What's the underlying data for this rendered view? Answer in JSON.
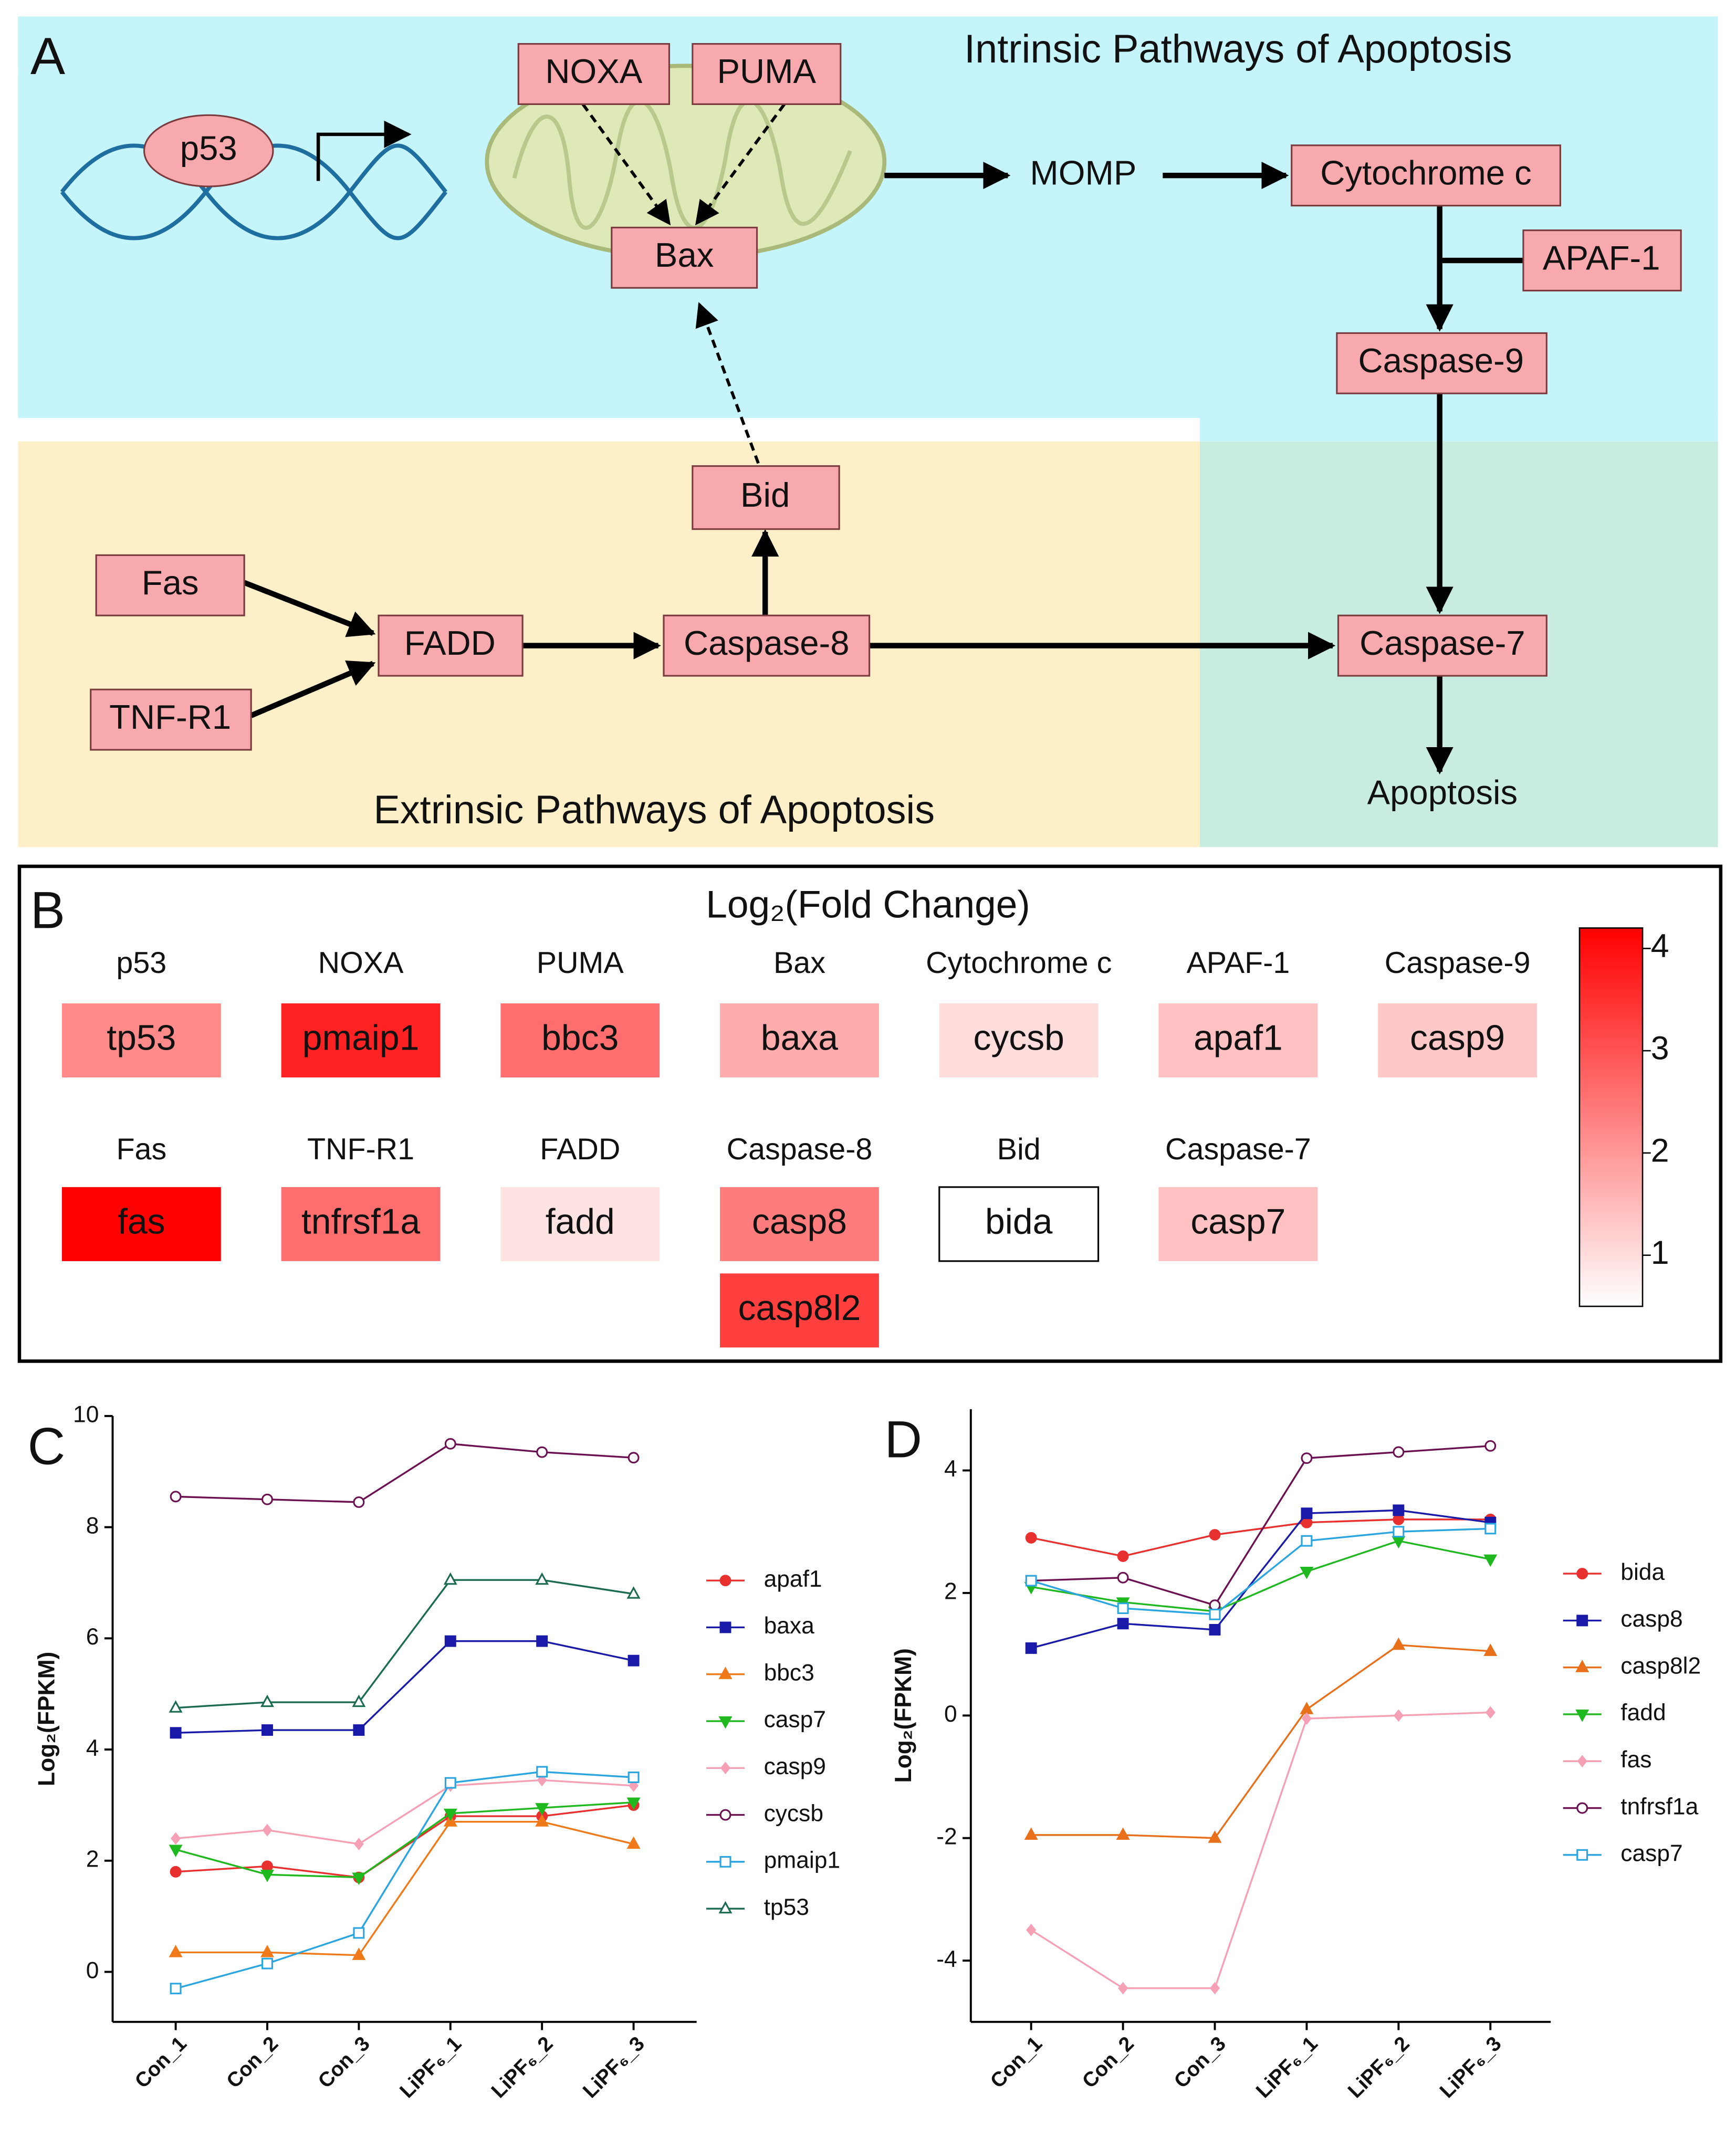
{
  "panel_a": {
    "label": "A",
    "intrinsic_title": "Intrinsic Pathways of Apoptosis",
    "extrinsic_title": "Extrinsic Pathways of Apoptosis",
    "p53": "p53",
    "nodes": {
      "noxa": "NOXA",
      "puma": "PUMA",
      "bax": "Bax",
      "cytc": "Cytochrome c",
      "apaf1": "APAF-1",
      "casp9": "Caspase-9",
      "bid": "Bid",
      "fas": "Fas",
      "fadd": "FADD",
      "casp8": "Caspase-8",
      "casp7": "Caspase-7",
      "tnfr1": "TNF-R1"
    },
    "momp": "MOMP",
    "apoptosis": "Apoptosis"
  },
  "panel_b": {
    "label": "B",
    "title": "Log₂(Fold Change)",
    "colorbar": {
      "lim": [
        0.5,
        4.2
      ],
      "ticks": [
        1,
        2,
        3,
        4
      ],
      "low_color": "#ffffff",
      "high_color": "#ff0000"
    },
    "rows": [
      [
        {
          "protein": "p53",
          "genes": [
            {
              "name": "tp53",
              "value": 2.2
            }
          ]
        },
        {
          "protein": "NOXA",
          "genes": [
            {
              "name": "pmaip1",
              "value": 3.7
            }
          ]
        },
        {
          "protein": "PUMA",
          "genes": [
            {
              "name": "bbc3",
              "value": 2.6
            }
          ]
        },
        {
          "protein": "Bax",
          "genes": [
            {
              "name": "baxa",
              "value": 1.7
            }
          ]
        },
        {
          "protein": "Cytochrome c",
          "genes": [
            {
              "name": "cycsb",
              "value": 1.0
            }
          ]
        },
        {
          "protein": "APAF-1",
          "genes": [
            {
              "name": "apaf1",
              "value": 1.4
            }
          ]
        },
        {
          "protein": "Caspase-9",
          "genes": [
            {
              "name": "casp9",
              "value": 1.3
            }
          ]
        }
      ],
      [
        {
          "protein": "Fas",
          "genes": [
            {
              "name": "fas",
              "value": 4.2
            }
          ]
        },
        {
          "protein": "TNF-R1",
          "genes": [
            {
              "name": "tnfrsf1a",
              "value": 2.6
            }
          ]
        },
        {
          "protein": "FADD",
          "genes": [
            {
              "name": "fadd",
              "value": 0.9
            }
          ]
        },
        {
          "protein": "Caspase-8",
          "genes": [
            {
              "name": "casp8",
              "value": 2.4
            },
            {
              "name": "casp8l2",
              "value": 3.3
            }
          ]
        },
        {
          "protein": "Bid",
          "genes": [
            {
              "name": "bida",
              "value": 0.5
            }
          ]
        },
        {
          "protein": "Caspase-7",
          "genes": [
            {
              "name": "casp7",
              "value": 1.4
            }
          ]
        }
      ]
    ]
  },
  "chart_data": [
    {
      "label": "C",
      "type": "line",
      "ylabel": "Log₂(FPKM)",
      "categories": [
        "Con_1",
        "Con_2",
        "Con_3",
        "LiPF₆_1",
        "LiPF₆_2",
        "LiPF₆_3"
      ],
      "ylim": [
        -0.9,
        10
      ],
      "yticks": [
        0,
        2,
        4,
        6,
        8,
        10
      ],
      "series": [
        {
          "name": "apaf1",
          "color": "#e8312f",
          "marker": "circle",
          "values": [
            1.8,
            1.9,
            1.7,
            2.8,
            2.8,
            3.0
          ]
        },
        {
          "name": "baxa",
          "color": "#1a1aa8",
          "marker": "square",
          "values": [
            4.3,
            4.35,
            4.35,
            5.95,
            5.95,
            5.6
          ]
        },
        {
          "name": "bbc3",
          "color": "#f07a1a",
          "marker": "triangle",
          "values": [
            0.35,
            0.35,
            0.3,
            2.7,
            2.7,
            2.3
          ]
        },
        {
          "name": "casp7",
          "color": "#1fb81f",
          "marker": "triangle-down",
          "values": [
            2.2,
            1.75,
            1.7,
            2.85,
            2.95,
            3.05
          ]
        },
        {
          "name": "casp9",
          "color": "#f5a0b4",
          "marker": "diamond",
          "values": [
            2.4,
            2.55,
            2.3,
            3.35,
            3.45,
            3.35
          ]
        },
        {
          "name": "cycsb",
          "color": "#6b1050",
          "marker": "open-circle",
          "values": [
            8.55,
            8.5,
            8.45,
            9.5,
            9.35,
            9.25
          ]
        },
        {
          "name": "pmaip1",
          "color": "#2aa5e0",
          "marker": "open-square",
          "values": [
            -0.3,
            0.15,
            0.7,
            3.4,
            3.6,
            3.5
          ]
        },
        {
          "name": "tp53",
          "color": "#1a6b50",
          "marker": "open-triangle",
          "values": [
            4.75,
            4.85,
            4.85,
            7.05,
            7.05,
            6.8
          ]
        }
      ]
    },
    {
      "label": "D",
      "type": "line",
      "ylabel": "Log₂(FPKM)",
      "categories": [
        "Con_1",
        "Con_2",
        "Con_3",
        "LiPF₆_1",
        "LiPF₆_2",
        "LiPF₆_3"
      ],
      "ylim": [
        -5,
        5
      ],
      "yticks": [
        -4,
        -2,
        0,
        2,
        4
      ],
      "series": [
        {
          "name": "bida",
          "color": "#e8312f",
          "marker": "circle",
          "values": [
            2.9,
            2.6,
            2.95,
            3.15,
            3.2,
            3.2
          ]
        },
        {
          "name": "casp8",
          "color": "#1a1aa8",
          "marker": "square",
          "values": [
            1.1,
            1.5,
            1.4,
            3.3,
            3.35,
            3.15
          ]
        },
        {
          "name": "casp8l2",
          "color": "#e8701a",
          "marker": "triangle",
          "values": [
            -1.95,
            -1.95,
            -2.0,
            0.1,
            1.15,
            1.05
          ]
        },
        {
          "name": "fadd",
          "color": "#1fb81f",
          "marker": "triangle-down",
          "values": [
            2.1,
            1.85,
            1.7,
            2.35,
            2.85,
            2.55
          ]
        },
        {
          "name": "fas",
          "color": "#f5a0b4",
          "marker": "diamond",
          "values": [
            -3.5,
            -4.45,
            -4.45,
            -0.05,
            0.0,
            0.05
          ]
        },
        {
          "name": "tnfrsf1a",
          "color": "#6b1050",
          "marker": "open-circle",
          "values": [
            2.2,
            2.25,
            1.8,
            4.2,
            4.3,
            4.4
          ]
        },
        {
          "name": "casp7",
          "color": "#2aa5e0",
          "marker": "open-square",
          "values": [
            2.2,
            1.75,
            1.65,
            2.85,
            3.0,
            3.05
          ]
        }
      ]
    }
  ]
}
